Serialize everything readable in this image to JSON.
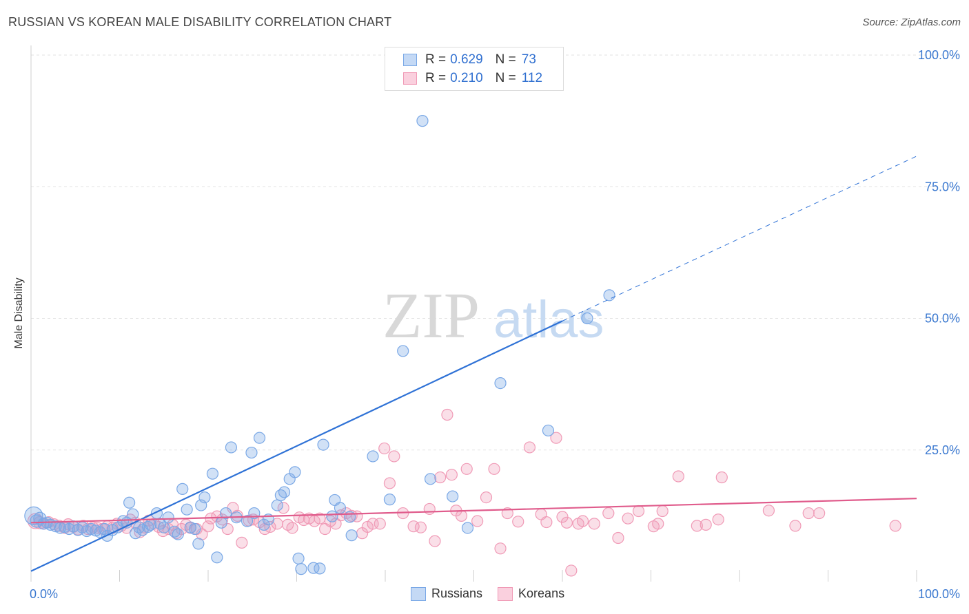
{
  "title": "RUSSIAN VS KOREAN MALE DISABILITY CORRELATION CHART",
  "source": "Source: ZipAtlas.com",
  "watermark": {
    "zip": "ZIP",
    "atlas": "atlas"
  },
  "colors": {
    "russians": "#7aa8e6",
    "russians_line": "#2f72d6",
    "koreans": "#f09ab6",
    "koreans_line": "#e05c8c",
    "axis_label": "#3a78d0"
  },
  "legend": {
    "russians": {
      "r_label": "R =",
      "r_value": "0.629",
      "n_label": "N =",
      "n_value": "73"
    },
    "koreans": {
      "r_label": "R =",
      "r_value": "0.210",
      "n_label": "N =",
      "n_value": "112"
    }
  },
  "series_labels": {
    "russians": "Russians",
    "koreans": "Koreans"
  },
  "chart_data": {
    "type": "scatter",
    "title": "RUSSIAN VS KOREAN MALE DISABILITY CORRELATION CHART",
    "xlabel": "",
    "ylabel": "Male Disability",
    "xlim": [
      0,
      100
    ],
    "ylim": [
      0,
      100
    ],
    "x_tick_labels": [
      "0.0%",
      "100.0%"
    ],
    "y_tick_labels": [
      "100.0%",
      "75.0%",
      "50.0%",
      "25.0%"
    ],
    "y_tick_values": [
      100,
      75,
      50,
      25
    ],
    "series": [
      {
        "name": "Russians",
        "trend": {
          "x0": 0,
          "y0": 2.0,
          "x1": 60,
          "y1": 49.5,
          "dash_to_x": 100,
          "dash_to_y": 80.8
        },
        "points": [
          [
            0.3,
            12.5,
            13
          ],
          [
            0.6,
            11.5,
            9
          ],
          [
            1.0,
            12.0,
            9
          ],
          [
            1.4,
            11.0,
            8
          ],
          [
            1.8,
            11.2,
            8
          ],
          [
            2.2,
            10.8,
            8
          ],
          [
            2.8,
            10.5,
            8
          ],
          [
            3.3,
            10.2,
            8
          ],
          [
            3.8,
            10.4,
            8
          ],
          [
            4.3,
            10.0,
            8
          ],
          [
            4.8,
            10.5,
            8
          ],
          [
            5.3,
            9.8,
            8
          ],
          [
            5.8,
            10.3,
            8
          ],
          [
            6.3,
            9.6,
            8
          ],
          [
            6.8,
            10.0,
            8
          ],
          [
            7.3,
            9.7,
            8
          ],
          [
            7.8,
            9.4,
            8
          ],
          [
            8.3,
            10.0,
            8
          ],
          [
            8.6,
            8.7,
            8
          ],
          [
            9.2,
            9.8,
            8
          ],
          [
            9.8,
            10.3,
            8
          ],
          [
            10.4,
            11.5,
            8
          ],
          [
            10.8,
            11.2,
            8
          ],
          [
            11.1,
            15.0,
            8
          ],
          [
            11.5,
            12.8,
            8
          ],
          [
            11.8,
            9.2,
            8
          ],
          [
            12.2,
            10.3,
            8
          ],
          [
            12.6,
            9.8,
            8
          ],
          [
            13.2,
            10.4,
            8
          ],
          [
            13.5,
            10.8,
            8
          ],
          [
            14.2,
            13.0,
            8
          ],
          [
            14.6,
            11.0,
            8
          ],
          [
            15.0,
            10.3,
            8
          ],
          [
            15.5,
            12.2,
            8
          ],
          [
            16.2,
            9.5,
            8
          ],
          [
            16.6,
            9.0,
            8
          ],
          [
            17.1,
            17.6,
            8
          ],
          [
            17.6,
            13.7,
            8
          ],
          [
            18.0,
            10.3,
            8
          ],
          [
            18.5,
            10.0,
            8
          ],
          [
            18.9,
            7.2,
            8
          ],
          [
            19.2,
            14.5,
            8
          ],
          [
            19.6,
            16.0,
            8
          ],
          [
            20.5,
            20.5,
            8
          ],
          [
            21.0,
            4.6,
            8
          ],
          [
            21.5,
            11.2,
            8
          ],
          [
            22.0,
            13.0,
            8
          ],
          [
            22.6,
            25.5,
            8
          ],
          [
            23.2,
            12.2,
            8
          ],
          [
            24.4,
            11.5,
            8
          ],
          [
            24.9,
            24.5,
            8
          ],
          [
            25.2,
            13.0,
            8
          ],
          [
            25.8,
            27.3,
            8
          ],
          [
            26.3,
            10.8,
            8
          ],
          [
            26.8,
            11.8,
            8
          ],
          [
            27.8,
            14.5,
            8
          ],
          [
            28.2,
            16.4,
            8
          ],
          [
            28.6,
            17.0,
            8
          ],
          [
            29.2,
            19.5,
            8
          ],
          [
            29.8,
            20.8,
            8
          ],
          [
            30.2,
            4.4,
            8
          ],
          [
            30.5,
            2.4,
            8
          ],
          [
            31.9,
            2.6,
            8
          ],
          [
            32.6,
            2.5,
            8
          ],
          [
            33.0,
            26.0,
            8
          ],
          [
            34.0,
            12.4,
            8
          ],
          [
            34.3,
            15.5,
            8
          ],
          [
            34.9,
            14.0,
            8
          ],
          [
            36.0,
            12.3,
            8
          ],
          [
            36.2,
            8.8,
            8
          ],
          [
            38.6,
            23.8,
            8
          ],
          [
            40.5,
            15.6,
            8
          ],
          [
            42.0,
            43.8,
            8
          ],
          [
            45.1,
            19.5,
            8
          ],
          [
            47.6,
            16.2,
            8
          ],
          [
            49.3,
            10.2,
            8
          ],
          [
            53.0,
            37.7,
            8
          ],
          [
            58.4,
            28.7,
            8
          ],
          [
            62.8,
            50.0,
            8
          ],
          [
            65.3,
            54.4,
            8
          ],
          [
            44.2,
            87.5,
            8
          ]
        ]
      },
      {
        "name": "Koreans",
        "trend": {
          "x0": 0,
          "y0": 11.2,
          "x1": 100,
          "y1": 15.8
        },
        "points": [
          [
            0.5,
            11.5,
            11
          ],
          [
            1.0,
            11.2,
            9
          ],
          [
            1.5,
            11.0,
            8
          ],
          [
            2.0,
            11.3,
            8
          ],
          [
            2.6,
            10.9,
            8
          ],
          [
            3.2,
            10.6,
            8
          ],
          [
            3.8,
            10.2,
            8
          ],
          [
            4.2,
            10.9,
            8
          ],
          [
            4.8,
            10.4,
            8
          ],
          [
            5.3,
            9.9,
            8
          ],
          [
            5.9,
            10.6,
            8
          ],
          [
            6.4,
            10.0,
            8
          ],
          [
            7.0,
            10.3,
            8
          ],
          [
            7.5,
            10.2,
            8
          ],
          [
            8.1,
            10.0,
            8
          ],
          [
            8.6,
            10.5,
            8
          ],
          [
            9.2,
            10.2,
            8
          ],
          [
            9.7,
            11.0,
            8
          ],
          [
            10.2,
            10.6,
            8
          ],
          [
            10.8,
            10.2,
            8
          ],
          [
            11.2,
            11.8,
            8
          ],
          [
            11.8,
            11.2,
            8
          ],
          [
            12.3,
            9.4,
            8
          ],
          [
            12.8,
            10.3,
            8
          ],
          [
            13.3,
            11.6,
            8
          ],
          [
            13.9,
            11.0,
            8
          ],
          [
            14.4,
            10.4,
            8
          ],
          [
            14.9,
            9.6,
            8
          ],
          [
            15.5,
            10.0,
            8
          ],
          [
            16.0,
            10.8,
            8
          ],
          [
            16.4,
            9.2,
            8
          ],
          [
            17.0,
            10.0,
            8
          ],
          [
            17.5,
            10.8,
            8
          ],
          [
            18.0,
            10.2,
            8
          ],
          [
            18.7,
            10.0,
            8
          ],
          [
            19.3,
            9.0,
            8
          ],
          [
            20.0,
            10.5,
            8
          ],
          [
            20.3,
            12.0,
            8
          ],
          [
            21.0,
            12.4,
            8
          ],
          [
            21.6,
            11.8,
            8
          ],
          [
            22.2,
            10.0,
            8
          ],
          [
            22.8,
            14.0,
            8
          ],
          [
            23.3,
            12.5,
            8
          ],
          [
            23.8,
            7.4,
            8
          ],
          [
            24.6,
            11.6,
            8
          ],
          [
            25.1,
            11.8,
            8
          ],
          [
            25.8,
            11.3,
            8
          ],
          [
            26.4,
            10.0,
            8
          ],
          [
            27.0,
            10.4,
            8
          ],
          [
            27.8,
            11.0,
            8
          ],
          [
            28.5,
            14.0,
            8
          ],
          [
            29.0,
            10.8,
            8
          ],
          [
            29.5,
            10.2,
            8
          ],
          [
            30.3,
            12.2,
            8
          ],
          [
            30.8,
            11.7,
            8
          ],
          [
            31.4,
            12.0,
            8
          ],
          [
            32.0,
            11.5,
            8
          ],
          [
            32.6,
            12.0,
            8
          ],
          [
            33.2,
            10.0,
            8
          ],
          [
            33.8,
            11.5,
            8
          ],
          [
            34.4,
            11.0,
            8
          ],
          [
            35.0,
            12.6,
            8
          ],
          [
            35.6,
            13.0,
            8
          ],
          [
            36.2,
            12.5,
            8
          ],
          [
            36.8,
            12.4,
            8
          ],
          [
            37.4,
            9.2,
            8
          ],
          [
            38.0,
            10.4,
            8
          ],
          [
            38.6,
            11.0,
            8
          ],
          [
            39.4,
            11.0,
            8
          ],
          [
            39.9,
            25.3,
            8
          ],
          [
            40.5,
            18.7,
            8
          ],
          [
            41.0,
            23.8,
            8
          ],
          [
            42.0,
            13.0,
            8
          ],
          [
            43.2,
            10.5,
            8
          ],
          [
            44.0,
            10.3,
            8
          ],
          [
            45.0,
            13.8,
            8
          ],
          [
            45.6,
            7.7,
            8
          ],
          [
            46.2,
            19.8,
            8
          ],
          [
            47.0,
            31.7,
            8
          ],
          [
            47.5,
            20.3,
            8
          ],
          [
            48.0,
            13.5,
            8
          ],
          [
            48.6,
            12.5,
            8
          ],
          [
            49.2,
            21.4,
            8
          ],
          [
            50.4,
            11.5,
            8
          ],
          [
            51.4,
            16.0,
            8
          ],
          [
            52.3,
            21.4,
            8
          ],
          [
            53.0,
            6.3,
            8
          ],
          [
            53.8,
            13.0,
            8
          ],
          [
            55.0,
            11.4,
            8
          ],
          [
            56.3,
            25.5,
            8
          ],
          [
            57.6,
            12.8,
            8
          ],
          [
            58.2,
            11.3,
            8
          ],
          [
            59.3,
            27.3,
            8
          ],
          [
            60.0,
            12.3,
            8
          ],
          [
            60.5,
            11.2,
            8
          ],
          [
            61.0,
            2.1,
            8
          ],
          [
            61.8,
            11.0,
            8
          ],
          [
            62.3,
            11.5,
            8
          ],
          [
            63.6,
            11.0,
            8
          ],
          [
            65.2,
            13.0,
            8
          ],
          [
            66.3,
            8.3,
            8
          ],
          [
            67.4,
            12.0,
            8
          ],
          [
            68.6,
            13.4,
            8
          ],
          [
            70.3,
            10.5,
            8
          ],
          [
            70.8,
            11.0,
            8
          ],
          [
            71.3,
            13.4,
            8
          ],
          [
            73.1,
            20.0,
            8
          ],
          [
            75.2,
            10.6,
            8
          ],
          [
            76.2,
            10.8,
            8
          ],
          [
            77.6,
            11.8,
            8
          ],
          [
            78.0,
            19.8,
            8
          ],
          [
            83.3,
            13.5,
            8
          ],
          [
            86.3,
            10.6,
            8
          ],
          [
            87.8,
            13.0,
            8
          ],
          [
            89.0,
            13.0,
            8
          ],
          [
            97.6,
            10.6,
            8
          ]
        ]
      }
    ]
  }
}
